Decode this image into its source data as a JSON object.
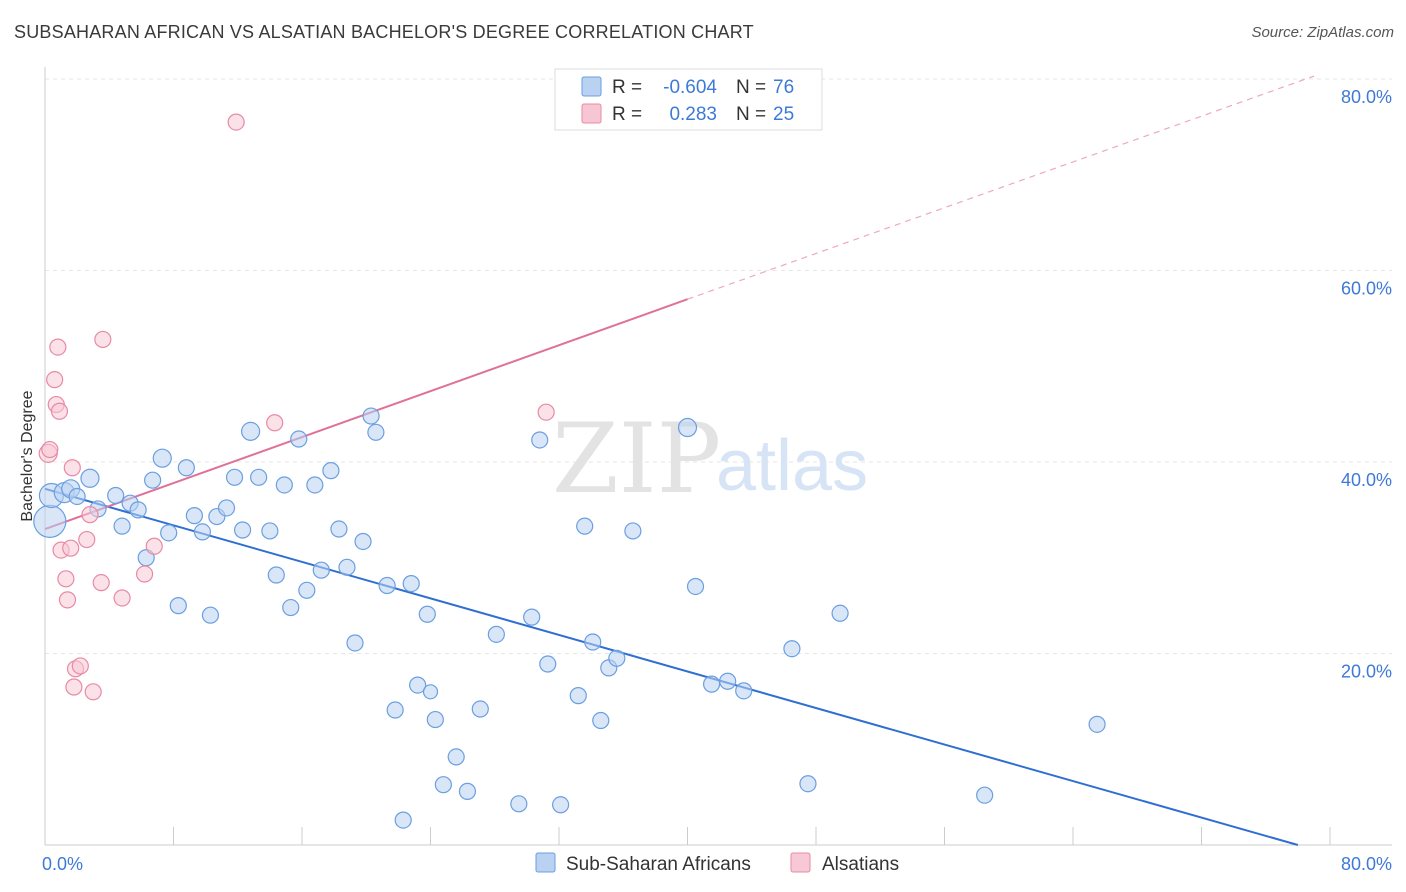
{
  "title": "SUBSAHARAN AFRICAN VS ALSATIAN BACHELOR'S DEGREE CORRELATION CHART",
  "source": "Source: ZipAtlas.com",
  "watermark": {
    "zip": "ZIP",
    "atlas": "atlas"
  },
  "legend": {
    "r_label": "R =",
    "n_label": "N =",
    "rows": [
      {
        "r": "-0.604",
        "n": "76",
        "color": "#a9c7ef"
      },
      {
        "r": "0.283",
        "n": "25",
        "color": "#f5b8c9"
      }
    ]
  },
  "chart_data": {
    "type": "scatter",
    "title": "SUBSAHARAN AFRICAN VS ALSATIAN BACHELOR'S DEGREE CORRELATION CHART",
    "xlabel": "",
    "ylabel": "Bachelor's Degree",
    "xlim": [
      0,
      80
    ],
    "ylim": [
      0,
      80
    ],
    "x_tick_labels": [
      "0.0%",
      "80.0%"
    ],
    "y_tick_labels": [
      "20.0%",
      "40.0%",
      "60.0%",
      "80.0%"
    ],
    "y_ticks": [
      20,
      40,
      60,
      80
    ],
    "grid": true,
    "legend_position": "bottom",
    "series": [
      {
        "name": "Sub-Saharan Africans",
        "color": "#6a9fe0",
        "fill": "#b9d2f2",
        "trend": {
          "x0": 0,
          "y0": 37.2,
          "x1": 78,
          "y1": 0,
          "color": "#2f6fd1"
        },
        "points": [
          [
            0.3,
            33.8,
            16
          ],
          [
            0.4,
            36.5,
            12
          ],
          [
            1.2,
            36.8,
            10
          ],
          [
            1.6,
            37.2,
            9
          ],
          [
            2.8,
            38.3,
            9
          ],
          [
            2.0,
            36.4,
            8
          ],
          [
            3.3,
            35.1,
            8
          ],
          [
            4.4,
            36.5,
            8
          ],
          [
            4.8,
            33.3,
            8
          ],
          [
            5.3,
            35.7,
            8
          ],
          [
            5.8,
            35.0,
            8
          ],
          [
            6.3,
            30.0,
            8
          ],
          [
            6.7,
            38.1,
            8
          ],
          [
            7.3,
            40.4,
            9
          ],
          [
            7.7,
            32.6,
            8
          ],
          [
            8.3,
            25.0,
            8
          ],
          [
            8.8,
            39.4,
            8
          ],
          [
            9.3,
            34.4,
            8
          ],
          [
            9.8,
            32.7,
            8
          ],
          [
            10.3,
            24.0,
            8
          ],
          [
            10.7,
            34.3,
            8
          ],
          [
            11.3,
            35.2,
            8
          ],
          [
            11.8,
            38.4,
            8
          ],
          [
            12.3,
            32.9,
            8
          ],
          [
            12.8,
            43.2,
            9
          ],
          [
            13.3,
            38.4,
            8
          ],
          [
            14.0,
            32.8,
            8
          ],
          [
            14.4,
            28.2,
            8
          ],
          [
            14.9,
            37.6,
            8
          ],
          [
            15.3,
            24.8,
            8
          ],
          [
            15.8,
            42.4,
            8
          ],
          [
            16.3,
            26.6,
            8
          ],
          [
            16.8,
            37.6,
            8
          ],
          [
            17.2,
            28.7,
            8
          ],
          [
            17.8,
            39.1,
            8
          ],
          [
            18.3,
            33.0,
            8
          ],
          [
            18.8,
            29.0,
            8
          ],
          [
            19.3,
            21.1,
            8
          ],
          [
            19.8,
            31.7,
            8
          ],
          [
            20.3,
            44.8,
            8
          ],
          [
            20.6,
            43.1,
            8
          ],
          [
            21.3,
            27.1,
            8
          ],
          [
            21.8,
            14.1,
            8
          ],
          [
            22.3,
            2.6,
            8
          ],
          [
            22.8,
            27.3,
            8
          ],
          [
            23.2,
            16.7,
            8
          ],
          [
            23.8,
            24.1,
            8
          ],
          [
            24.3,
            13.1,
            8
          ],
          [
            24.8,
            6.3,
            8
          ],
          [
            25.6,
            9.2,
            8
          ],
          [
            26.3,
            5.6,
            8
          ],
          [
            27.1,
            14.2,
            8
          ],
          [
            28.1,
            22.0,
            8
          ],
          [
            29.5,
            4.3,
            8
          ],
          [
            30.3,
            23.8,
            8
          ],
          [
            30.8,
            42.3,
            8
          ],
          [
            31.3,
            18.9,
            8
          ],
          [
            32.1,
            4.2,
            8
          ],
          [
            33.2,
            15.6,
            8
          ],
          [
            33.6,
            33.3,
            8
          ],
          [
            34.1,
            21.2,
            8
          ],
          [
            34.6,
            13.0,
            8
          ],
          [
            35.1,
            18.5,
            8
          ],
          [
            35.6,
            19.5,
            8
          ],
          [
            36.6,
            32.8,
            8
          ],
          [
            40.0,
            43.6,
            9
          ],
          [
            40.5,
            27.0,
            8
          ],
          [
            41.5,
            16.8,
            8
          ],
          [
            42.5,
            17.1,
            8
          ],
          [
            43.5,
            16.1,
            8
          ],
          [
            46.5,
            20.5,
            8
          ],
          [
            47.5,
            6.4,
            8
          ],
          [
            49.5,
            24.2,
            8
          ],
          [
            58.5,
            5.2,
            8
          ],
          [
            65.5,
            12.6,
            8
          ],
          [
            24.0,
            16.0,
            7
          ]
        ]
      },
      {
        "name": "Alsatians",
        "color": "#e88aa5",
        "fill": "#f7c9d6",
        "trend": {
          "x0": 0,
          "y0": 33.0,
          "x1": 40,
          "y1": 57.0,
          "dash_to_x": 79,
          "dash_to_y": 80.3,
          "color": "#e0709a"
        },
        "points": [
          [
            0.2,
            40.9,
            9
          ],
          [
            0.3,
            41.3,
            8
          ],
          [
            0.6,
            48.6,
            8
          ],
          [
            0.7,
            46.0,
            8
          ],
          [
            0.8,
            52.0,
            8
          ],
          [
            0.9,
            45.3,
            8
          ],
          [
            1.0,
            30.8,
            8
          ],
          [
            1.3,
            27.8,
            8
          ],
          [
            1.4,
            25.6,
            8
          ],
          [
            1.6,
            31.0,
            8
          ],
          [
            1.7,
            39.4,
            8
          ],
          [
            1.8,
            16.5,
            8
          ],
          [
            1.9,
            18.4,
            8
          ],
          [
            2.2,
            18.7,
            8
          ],
          [
            2.6,
            31.9,
            8
          ],
          [
            2.8,
            34.5,
            8
          ],
          [
            3.0,
            16.0,
            8
          ],
          [
            3.5,
            27.4,
            8
          ],
          [
            3.6,
            52.8,
            8
          ],
          [
            4.8,
            25.8,
            8
          ],
          [
            6.2,
            28.3,
            8
          ],
          [
            6.8,
            31.2,
            8
          ],
          [
            11.9,
            75.5,
            8
          ],
          [
            14.3,
            44.1,
            8
          ],
          [
            31.2,
            45.2,
            8
          ]
        ]
      }
    ]
  },
  "bottom_legend": [
    {
      "label": "Sub-Saharan Africans",
      "fill": "#b9d2f2",
      "stroke": "#6a9fe0"
    },
    {
      "label": "Alsatians",
      "fill": "#f7c9d6",
      "stroke": "#e88aa5"
    }
  ]
}
